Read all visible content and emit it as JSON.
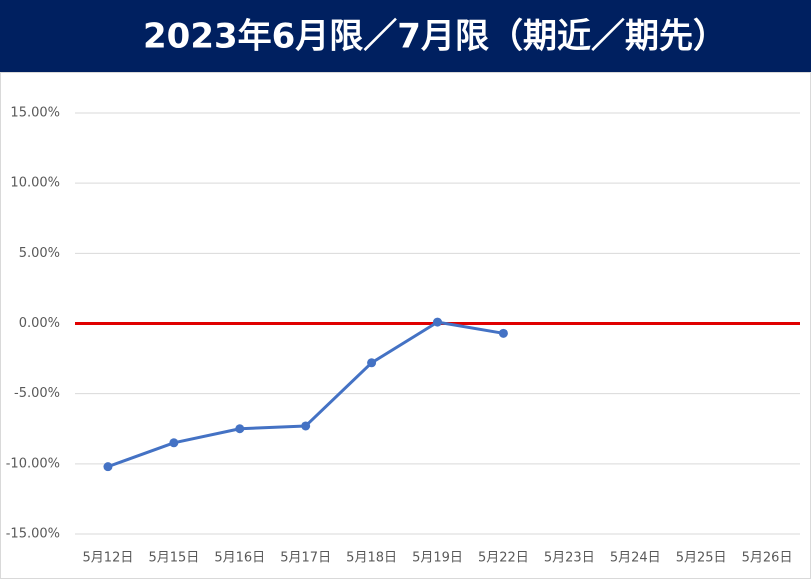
{
  "chart_data": {
    "type": "line",
    "title": "2023年6月限／7月限（期近／期先）",
    "categories": [
      "5月12日",
      "5月15日",
      "5月16日",
      "5月17日",
      "5月18日",
      "5月19日",
      "5月22日",
      "5月23日",
      "5月24日",
      "5月25日",
      "5月26日"
    ],
    "series": [
      {
        "name": "期近／期先",
        "color": "#4472c4",
        "values": [
          -10.2,
          -8.5,
          -7.5,
          -7.3,
          -2.8,
          0.1,
          -0.7,
          null,
          null,
          null,
          null
        ]
      }
    ],
    "ylim": [
      -15,
      15
    ],
    "yticks": [
      {
        "value": -15,
        "label": "-15.00%"
      },
      {
        "value": -10,
        "label": "-10.00%"
      },
      {
        "value": -5,
        "label": "-5.00%"
      },
      {
        "value": 0,
        "label": "0.00%"
      },
      {
        "value": 5,
        "label": "5.00%"
      },
      {
        "value": 10,
        "label": "10.00%"
      },
      {
        "value": 15,
        "label": "15.00%"
      }
    ],
    "grid": true,
    "zero_line_color": "#e00000",
    "header_color": "#002060"
  }
}
